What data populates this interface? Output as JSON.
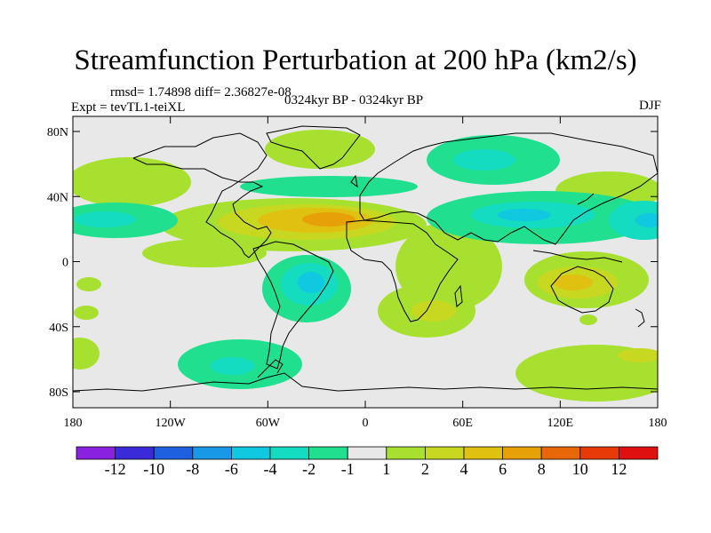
{
  "title": "Streamfunction Perturbation at 200 hPa (km2/s)",
  "stats_line": "rmsd= 1.74898 diff= 2.36827e-08",
  "experiment": "Expt = tevTL1-teiXL",
  "period": "0324kyr BP - 0324kyr BP",
  "season": "DJF",
  "map": {
    "background_color": "#e8e8e8",
    "y_axis_labels": [
      "80N",
      "40N",
      "0",
      "40S",
      "80S"
    ],
    "x_axis_labels": [
      "180",
      "120W",
      "60W",
      "0",
      "60E",
      "120E",
      "180"
    ]
  },
  "colorbar": {
    "colors": [
      "#8a20e0",
      "#3a2ad8",
      "#1e60e0",
      "#1a98e8",
      "#10c8e0",
      "#14dcc0",
      "#20e090",
      "#e8e8e8",
      "#a8e030",
      "#c8d820",
      "#e0c010",
      "#e8a008",
      "#e86808",
      "#e83a08",
      "#e01010"
    ],
    "labels": [
      "-12",
      "-10",
      "-8",
      "-6",
      "-4",
      "-2",
      "-1",
      "1",
      "2",
      "4",
      "6",
      "8",
      "10",
      "12"
    ]
  }
}
